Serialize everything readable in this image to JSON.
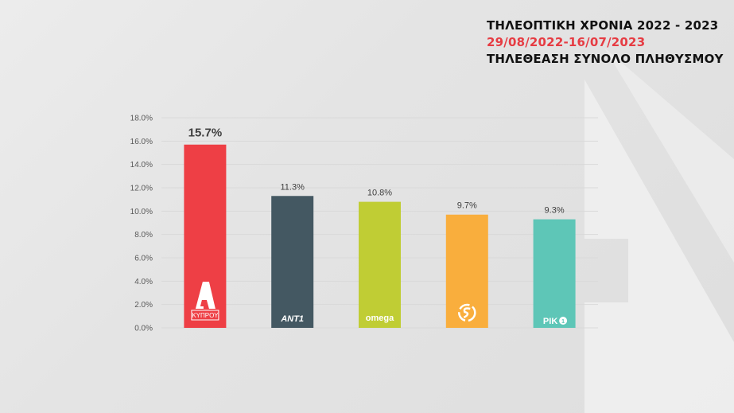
{
  "header": {
    "title": "ΤΗΛΕΟΠΤΙΚΗ ΧΡΟΝΙΑ 2022 - 2023",
    "dates": "29/08/2022-16/07/2023",
    "subtitle": "ΤΗΛΕΘΕΑΣΗ ΣΥΝΟΛΟ ΠΛΗΘΥΣΜΟΥ"
  },
  "chart_data": {
    "type": "bar",
    "title": "",
    "xlabel": "",
    "ylabel": "",
    "ylim": [
      0,
      18
    ],
    "ytick_step": 2,
    "ytick_labels": [
      "0.0%",
      "2.0%",
      "4.0%",
      "6.0%",
      "8.0%",
      "10.0%",
      "12.0%",
      "14.0%",
      "16.0%",
      "18.0%"
    ],
    "grid": true,
    "categories": [
      "ALPHA ΚΥΠΡΟΥ",
      "ANT1",
      "omega",
      "SIGMA",
      "RIK1"
    ],
    "values": [
      15.7,
      11.3,
      10.8,
      9.7,
      9.3
    ],
    "value_labels": [
      "15.7%",
      "11.3%",
      "10.8%",
      "9.7%",
      "9.3%"
    ],
    "colors": [
      "#ee3f45",
      "#445862",
      "#c0cd34",
      "#f9ae3d",
      "#5ec6b7"
    ],
    "highlight_index": 0,
    "logos": [
      {
        "icon": "alpha-logo-icon",
        "text": "ΚΥΠΡΟΥ"
      },
      {
        "icon": "ant1-logo-icon",
        "text": "ANT1"
      },
      {
        "icon": "omega-logo-icon",
        "text": "omega"
      },
      {
        "icon": "sigma-logo-icon",
        "text": ""
      },
      {
        "icon": "rik1-logo-icon",
        "text": "ΡΙΚ"
      }
    ]
  }
}
